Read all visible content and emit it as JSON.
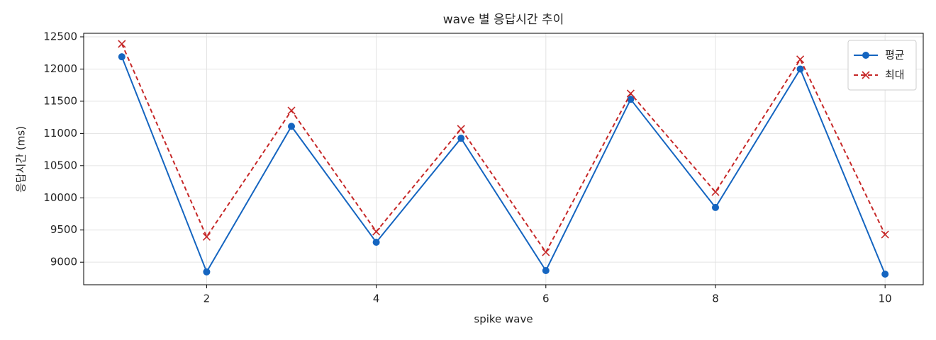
{
  "chart_data": {
    "type": "line",
    "title": "wave 별 응답시간 추이",
    "x_label": "spike wave",
    "y_label": "응답시간 (ms)",
    "x": [
      1,
      2,
      3,
      4,
      5,
      6,
      7,
      8,
      9,
      10
    ],
    "series": [
      {
        "name": "평균",
        "color": "#1565c0",
        "marker": "circle",
        "linestyle": "solid",
        "values": [
          12190,
          8850,
          11110,
          9310,
          10925,
          8870,
          11530,
          9850,
          12000,
          8815
        ]
      },
      {
        "name": "최대",
        "color": "#c62828",
        "marker": "x",
        "linestyle": "dashed",
        "values": [
          12390,
          9395,
          11355,
          9475,
          11070,
          9155,
          11620,
          10090,
          12150,
          9430
        ]
      }
    ],
    "xlim": [
      0.55,
      10.45
    ],
    "ylim": [
      8650,
      12555
    ],
    "xticks": [
      2,
      4,
      6,
      8,
      10
    ],
    "yticks": [
      9000,
      9500,
      10000,
      10500,
      11000,
      11500,
      12000,
      12500
    ],
    "grid": true,
    "legend": "upper right"
  }
}
